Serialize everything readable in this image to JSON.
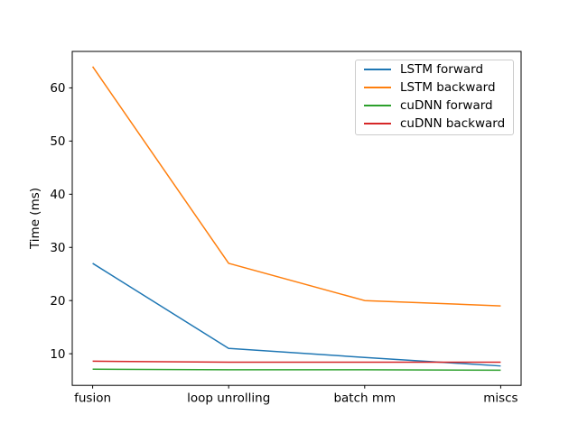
{
  "figure": {
    "background": "#ffffff"
  },
  "chart_data": {
    "type": "line",
    "title": "",
    "xlabel": "",
    "ylabel": "Time (ms)",
    "categories": [
      "fusion",
      "loop unrolling",
      "batch mm",
      "miscs"
    ],
    "series": [
      {
        "name": "LSTM forward",
        "color": "#1f77b4",
        "values": [
          27,
          11,
          9.3,
          7.7
        ]
      },
      {
        "name": "LSTM backward",
        "color": "#ff7f0e",
        "values": [
          64,
          27,
          20,
          19
        ]
      },
      {
        "name": "cuDNN forward",
        "color": "#2ca02c",
        "values": [
          7.1,
          7.0,
          7.0,
          6.9
        ]
      },
      {
        "name": "cuDNN backward",
        "color": "#d62728",
        "values": [
          8.6,
          8.4,
          8.4,
          8.4
        ]
      }
    ],
    "yticks": [
      10,
      20,
      30,
      40,
      50,
      60
    ],
    "ylim": [
      4.05,
      66.86
    ],
    "xlim": [
      -0.15,
      3.15
    ],
    "grid": false,
    "line_width": 1.5,
    "legend": {
      "position": "upper right",
      "border_color": "#cccccc"
    },
    "axis_color": "#000000",
    "text_color": "#000000"
  }
}
